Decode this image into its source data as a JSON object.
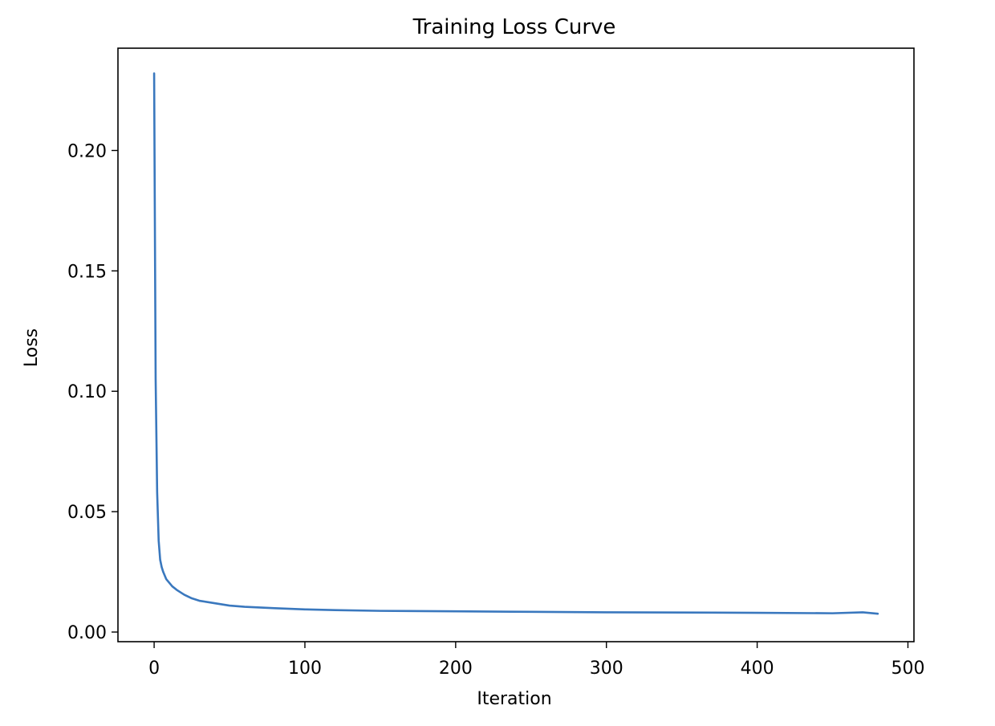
{
  "chart_data": {
    "type": "line",
    "title": "Training Loss Curve",
    "xlabel": "Iteration",
    "ylabel": "Loss",
    "xlim": [
      -24,
      504
    ],
    "ylim": [
      -0.004,
      0.2425
    ],
    "xticks": [
      0,
      100,
      200,
      300,
      400,
      500
    ],
    "xtick_labels": [
      "0",
      "100",
      "200",
      "300",
      "400",
      "500"
    ],
    "yticks": [
      0.0,
      0.05,
      0.1,
      0.15,
      0.2
    ],
    "ytick_labels": [
      "0.00",
      "0.05",
      "0.10",
      "0.15",
      "0.20"
    ],
    "grid": false,
    "legend": "none",
    "line_color": "#3a78be",
    "series": [
      {
        "x": [
          0,
          1,
          2,
          3,
          4,
          5,
          6,
          8,
          10,
          12,
          15,
          20,
          25,
          30,
          40,
          50,
          60,
          70,
          80,
          100,
          120,
          150,
          200,
          250,
          300,
          350,
          400,
          450,
          470,
          480
        ],
        "values": [
          0.232,
          0.105,
          0.058,
          0.038,
          0.03,
          0.027,
          0.025,
          0.022,
          0.0205,
          0.019,
          0.0175,
          0.0155,
          0.014,
          0.013,
          0.012,
          0.011,
          0.0105,
          0.0102,
          0.0099,
          0.0094,
          0.0091,
          0.0088,
          0.0086,
          0.0084,
          0.0082,
          0.0081,
          0.008,
          0.0078,
          0.0082,
          0.0076
        ]
      }
    ]
  }
}
